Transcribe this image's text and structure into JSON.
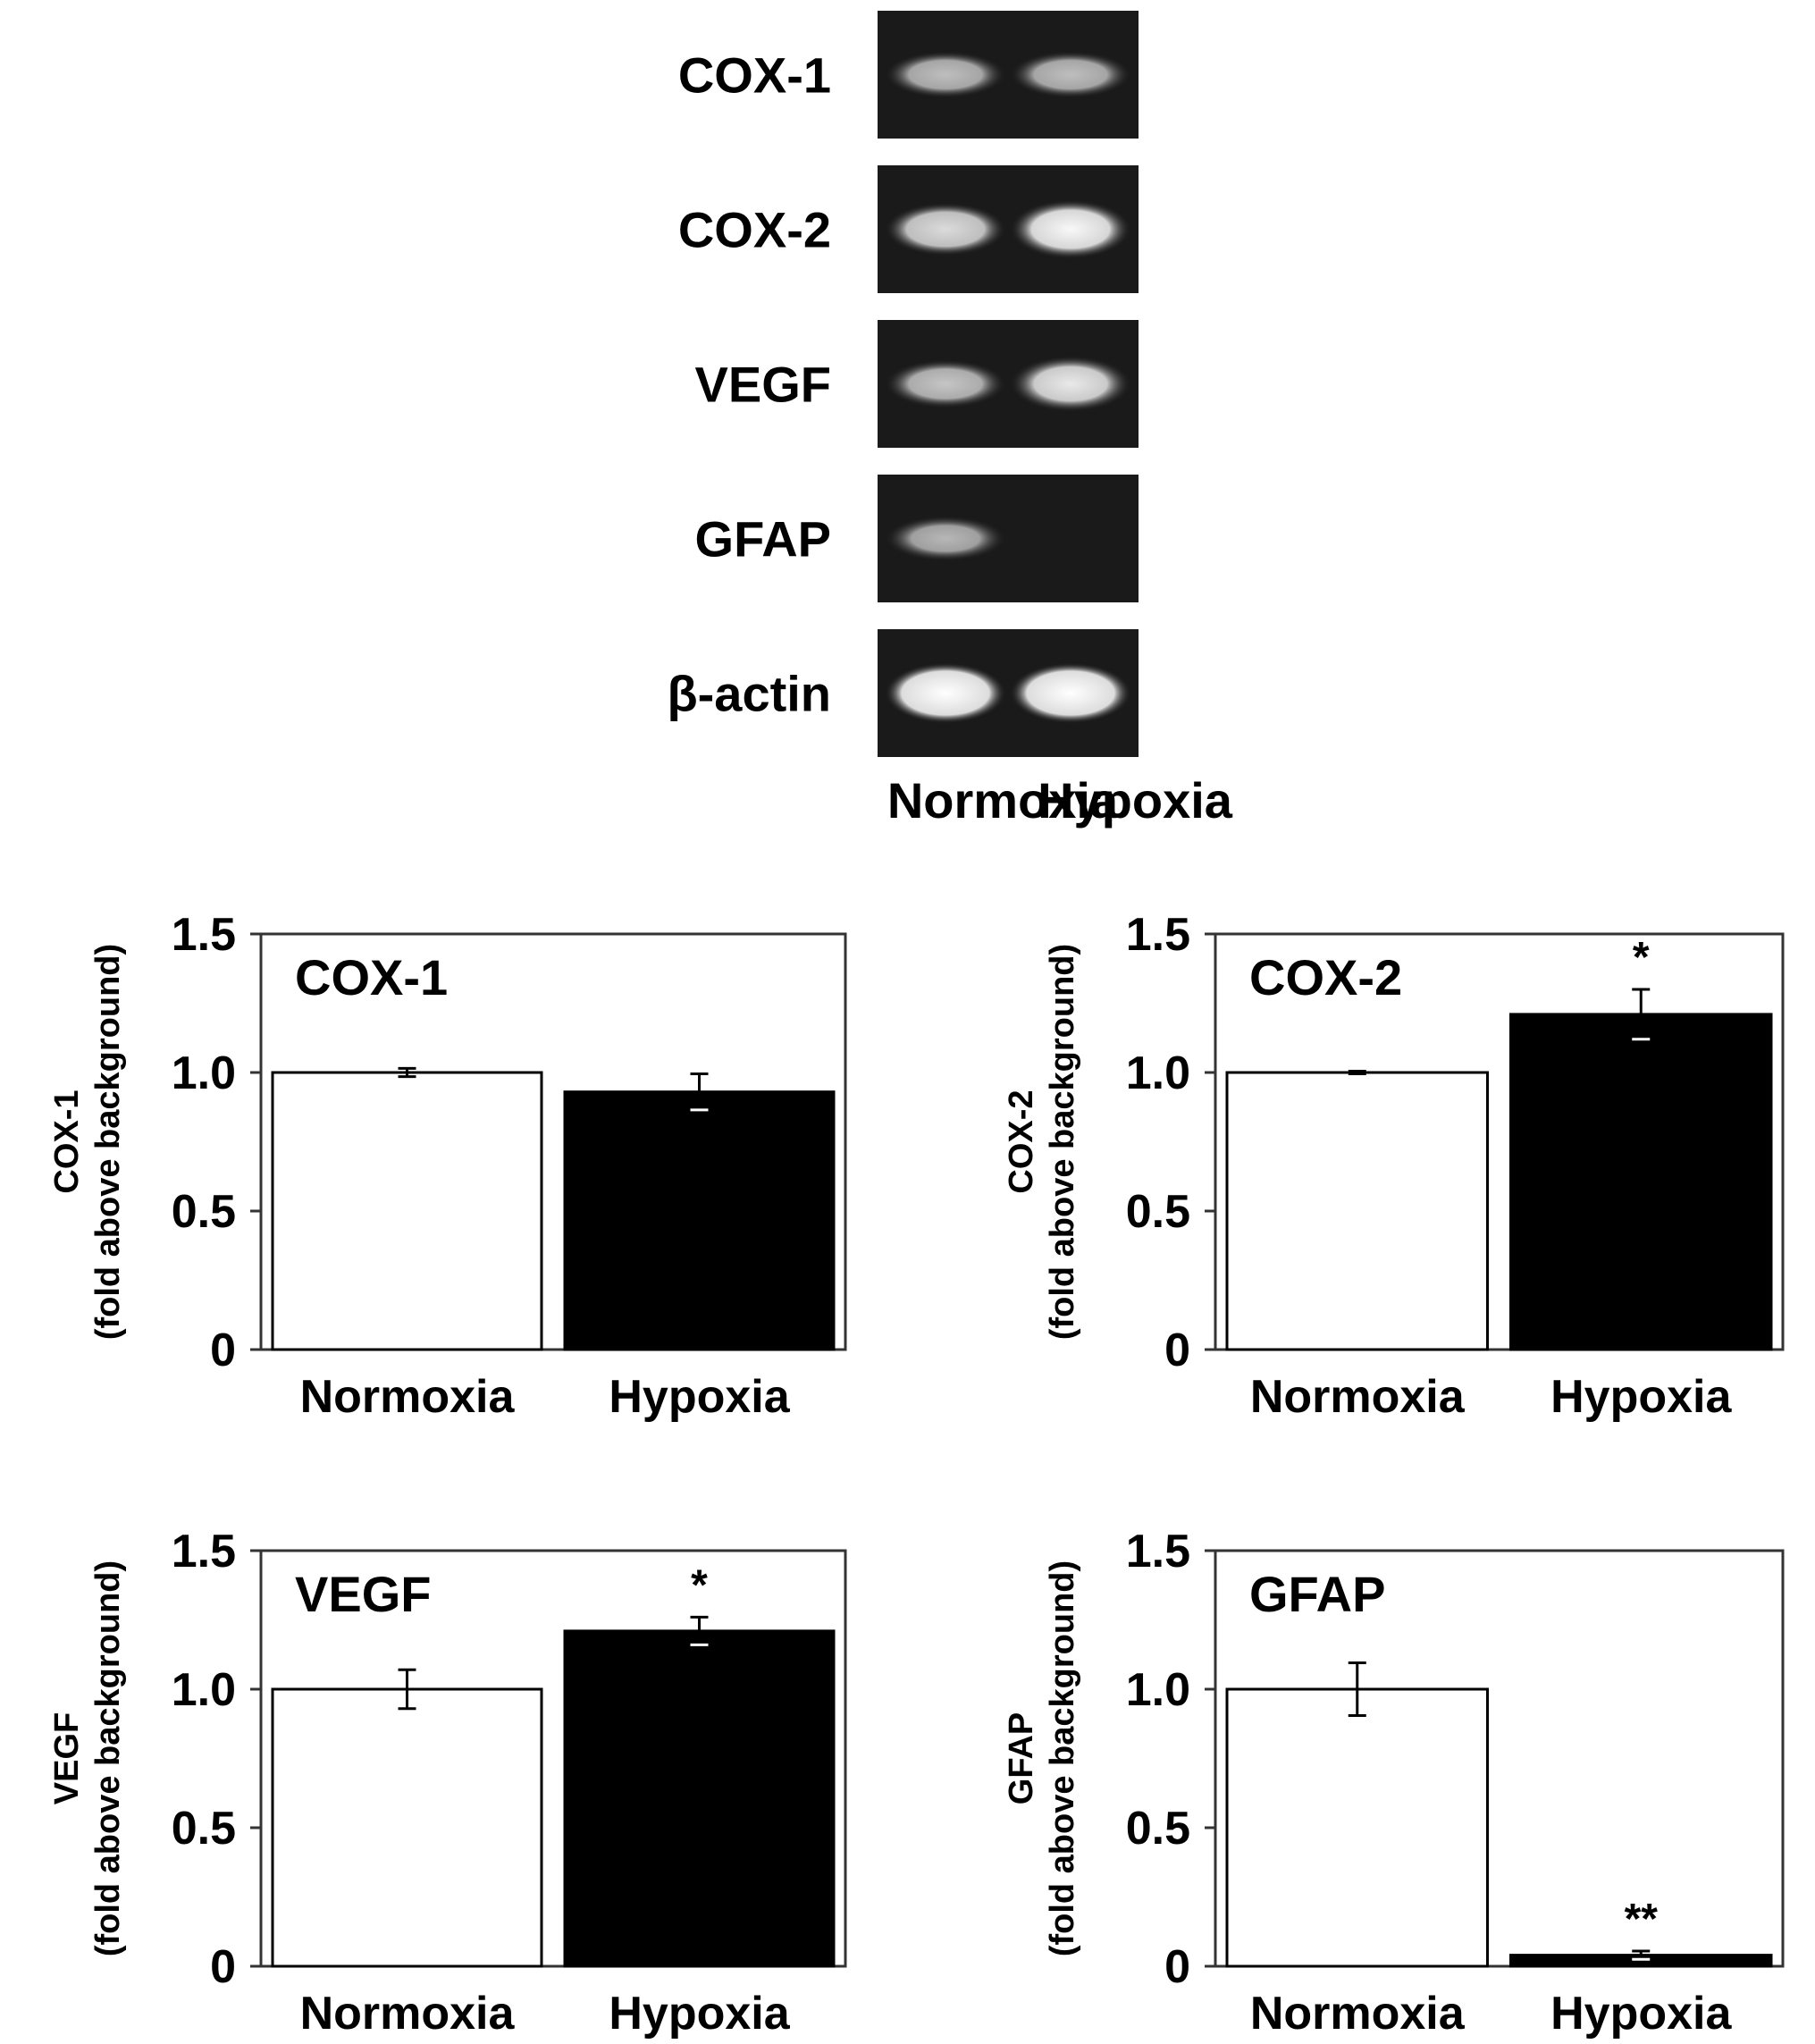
{
  "gel": {
    "rows": [
      {
        "label": "COX-1",
        "intensity": [
          0.55,
          0.55
        ],
        "sharpness": 0.5
      },
      {
        "label": "COX-2",
        "intensity": [
          0.75,
          0.95
        ],
        "sharpness": 0.6
      },
      {
        "label": "VEGF",
        "intensity": [
          0.6,
          0.85
        ],
        "sharpness": 0.5
      },
      {
        "label": "GFAP",
        "intensity": [
          0.5,
          0.0
        ],
        "sharpness": 0.4
      },
      {
        "label": "β-actin",
        "intensity": [
          1.0,
          1.0
        ],
        "sharpness": 0.8
      }
    ],
    "lanes": [
      "Normoxia",
      "Hypoxia"
    ]
  },
  "colors": {
    "gel_bg": "#1a1a1a",
    "normoxia_bar": "#ffffff",
    "hypoxia_bar": "#000000",
    "axis": "#333333"
  },
  "chart_data": [
    {
      "type": "bar",
      "title": "COX-1",
      "ylabel": [
        "COX-1",
        "(fold above background)"
      ],
      "categories": [
        "Normoxia",
        "Hypoxia"
      ],
      "values": [
        1.0,
        0.93
      ],
      "errors": [
        0.015,
        0.065
      ],
      "significance": [
        "",
        ""
      ],
      "ylim": [
        0,
        1.5
      ],
      "yticks": [
        "0",
        "0.5",
        "1.0",
        "1.5"
      ],
      "grid": false
    },
    {
      "type": "bar",
      "title": "COX-2",
      "ylabel": [
        "COX-2",
        "(fold above background)"
      ],
      "categories": [
        "Normoxia",
        "Hypoxia"
      ],
      "values": [
        1.0,
        1.21
      ],
      "errors": [
        0.005,
        0.09
      ],
      "significance": [
        "",
        "*"
      ],
      "ylim": [
        0,
        1.5
      ],
      "yticks": [
        "0",
        "0.5",
        "1.0",
        "1.5"
      ],
      "grid": false
    },
    {
      "type": "bar",
      "title": "VEGF",
      "ylabel": [
        "VEGF",
        "(fold above background)"
      ],
      "categories": [
        "Normoxia",
        "Hypoxia"
      ],
      "values": [
        1.0,
        1.21
      ],
      "errors": [
        0.07,
        0.05
      ],
      "significance": [
        "",
        "*"
      ],
      "ylim": [
        0,
        1.5
      ],
      "yticks": [
        "0",
        "0.5",
        "1.0",
        "1.5"
      ],
      "grid": false
    },
    {
      "type": "bar",
      "title": "GFAP",
      "ylabel": [
        "GFAP",
        "(fold above background)"
      ],
      "categories": [
        "Normoxia",
        "Hypoxia"
      ],
      "values": [
        1.0,
        0.04
      ],
      "errors": [
        0.095,
        0.015
      ],
      "significance": [
        "",
        "**"
      ],
      "ylim": [
        0,
        1.5
      ],
      "yticks": [
        "0",
        "0.5",
        "1.0",
        "1.5"
      ],
      "grid": false
    }
  ]
}
